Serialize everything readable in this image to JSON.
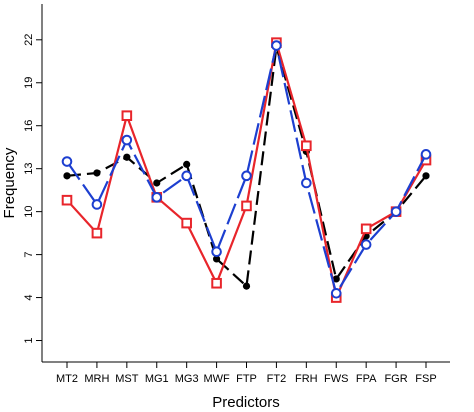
{
  "chart_data": {
    "type": "line",
    "title": "",
    "xlabel": "Predictors",
    "ylabel": "Frequency",
    "categories": [
      "MT2",
      "MRH",
      "MST",
      "MG1",
      "MG3",
      "MWF",
      "FTP",
      "FT2",
      "FRH",
      "FWS",
      "FPA",
      "FGR",
      "FSP"
    ],
    "yticks": [
      1,
      4,
      7,
      10,
      13,
      16,
      19,
      22
    ],
    "ylim": [
      -0.5,
      24.5
    ],
    "grid": false,
    "series": [
      {
        "color": "#000000",
        "marker": "filled-circle",
        "line": "dashed",
        "values": [
          12.5,
          12.7,
          13.8,
          12.0,
          13.3,
          6.7,
          4.8,
          21.5,
          14.2,
          5.3,
          8.3,
          10.0,
          12.5
        ]
      },
      {
        "color": "#e8252b",
        "marker": "open-square",
        "line": "solid",
        "values": [
          10.8,
          8.5,
          16.7,
          11.0,
          9.2,
          5.0,
          10.4,
          21.8,
          14.6,
          4.0,
          8.8,
          10.0,
          13.6
        ]
      },
      {
        "color": "#1d3fd0",
        "marker": "open-circle",
        "line": "long-dashed",
        "values": [
          13.5,
          10.5,
          15.0,
          11.0,
          12.5,
          7.2,
          12.5,
          21.6,
          12.0,
          4.3,
          7.7,
          10.0,
          14.0
        ]
      }
    ]
  }
}
